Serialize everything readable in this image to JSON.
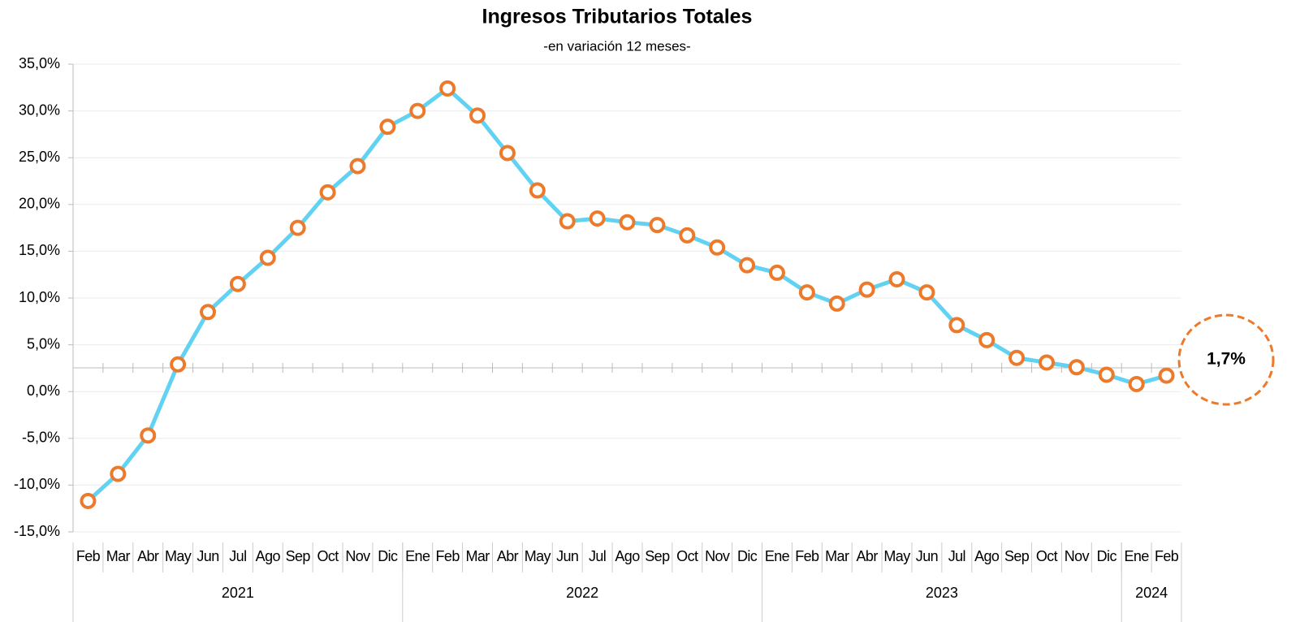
{
  "chart_data": {
    "type": "line",
    "title": "Ingresos Tributarios Totales",
    "subtitle": "-en variación 12 meses-",
    "categories": [
      "Feb",
      "Mar",
      "Abr",
      "May",
      "Jun",
      "Jul",
      "Ago",
      "Sep",
      "Oct",
      "Nov",
      "Dic",
      "Ene",
      "Feb",
      "Mar",
      "Abr",
      "May",
      "Jun",
      "Jul",
      "Ago",
      "Sep",
      "Oct",
      "Nov",
      "Dic",
      "Ene",
      "Feb",
      "Mar",
      "Abr",
      "May",
      "Jun",
      "Jul",
      "Ago",
      "Sep",
      "Oct",
      "Nov",
      "Dic",
      "Ene",
      "Feb"
    ],
    "year_labels": [
      "2021",
      null,
      null,
      null,
      null,
      null,
      null,
      null,
      null,
      null,
      null,
      "2022",
      null,
      null,
      null,
      null,
      null,
      null,
      null,
      null,
      null,
      null,
      null,
      "2023",
      null,
      null,
      null,
      null,
      null,
      null,
      null,
      null,
      null,
      null,
      null,
      "2024",
      null
    ],
    "series": [
      {
        "name": "Ingresos Tributarios Totales",
        "color": "#62d2f2",
        "marker_color": "#ec7a2a",
        "values": [
          -11.7,
          -8.8,
          -4.7,
          2.9,
          8.5,
          11.5,
          14.3,
          17.5,
          21.3,
          24.1,
          28.3,
          30.0,
          32.4,
          29.5,
          25.5,
          21.5,
          18.2,
          18.5,
          18.1,
          17.8,
          16.7,
          15.4,
          13.5,
          12.7,
          10.6,
          9.4,
          10.9,
          12.0,
          10.6,
          7.1,
          5.5,
          3.6,
          3.1,
          2.6,
          1.8,
          0.8,
          1.7
        ]
      }
    ],
    "annotation": "1,7%",
    "ylim": [
      -15,
      35
    ],
    "yticks": [
      {
        "value": -15,
        "label": "-15,0%"
      },
      {
        "value": -10,
        "label": "-10,0%"
      },
      {
        "value": -5,
        "label": "-5,0%"
      },
      {
        "value": 0,
        "label": "0,0%"
      },
      {
        "value": 5,
        "label": "5,0%"
      },
      {
        "value": 10,
        "label": "10,0%"
      },
      {
        "value": 15,
        "label": "15,0%"
      },
      {
        "value": 20,
        "label": "20,0%"
      },
      {
        "value": 25,
        "label": "25,0%"
      },
      {
        "value": 30,
        "label": "30,0%"
      },
      {
        "value": 35,
        "label": "35,0%"
      }
    ],
    "grid": true
  }
}
